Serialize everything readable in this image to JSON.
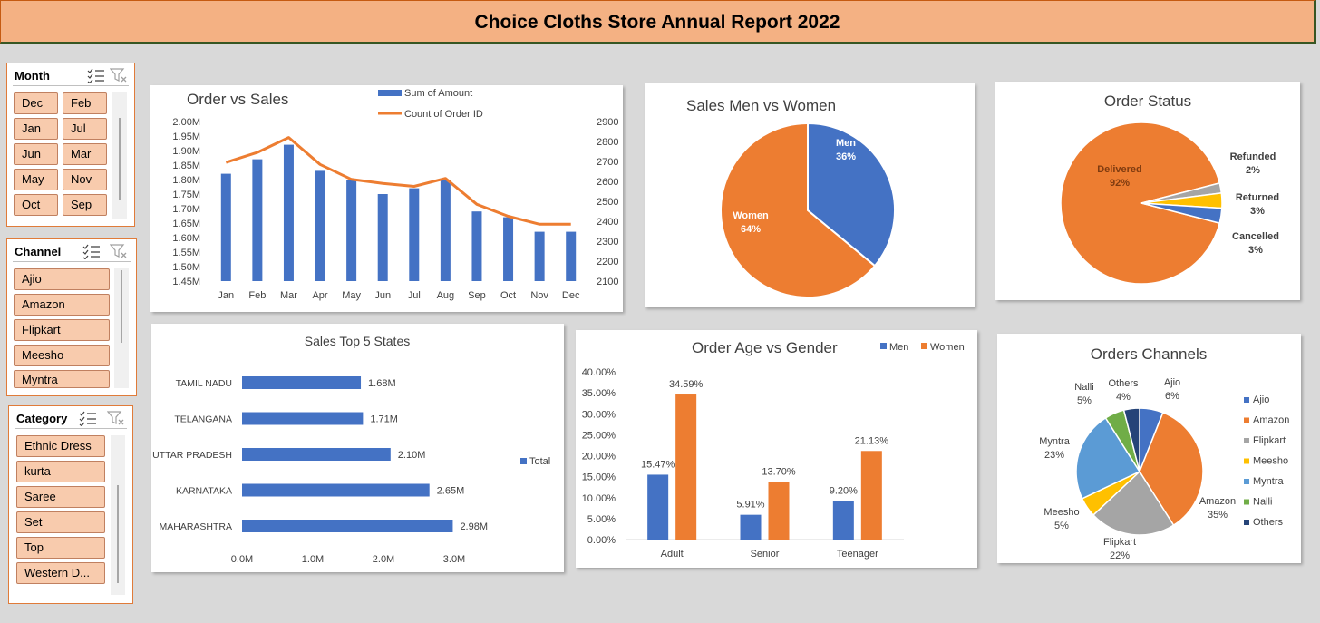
{
  "title": "Choice Cloths Store Annual Report 2022",
  "colors": {
    "blue": "#4472c4",
    "orange": "#ed7d31",
    "gray": "#a5a5a5",
    "yellow": "#ffc000",
    "lightblue": "#5b9bd5",
    "green": "#70ad47",
    "navy": "#264478"
  },
  "slicers": {
    "month": {
      "header": "Month",
      "items": [
        "Dec",
        "Feb",
        "Jan",
        "Jul",
        "Jun",
        "Mar",
        "May",
        "Nov",
        "Oct",
        "Sep"
      ]
    },
    "channel": {
      "header": "Channel",
      "items": [
        "Ajio",
        "Amazon",
        "Flipkart",
        "Meesho",
        "Myntra"
      ]
    },
    "category": {
      "header": "Category",
      "items": [
        "Ethnic Dress",
        "kurta",
        "Saree",
        "Set",
        "Top",
        "Western D..."
      ]
    }
  },
  "chart_data": [
    {
      "id": "order_vs_sales",
      "type": "bar+line",
      "title": "Order vs Sales",
      "categories": [
        "Jan",
        "Feb",
        "Mar",
        "Apr",
        "May",
        "Jun",
        "Jul",
        "Aug",
        "Sep",
        "Oct",
        "Nov",
        "Dec"
      ],
      "series": [
        {
          "name": "Sum of Amount",
          "type": "bar",
          "axis": "left",
          "values": [
            1.82,
            1.87,
            1.92,
            1.83,
            1.8,
            1.75,
            1.77,
            1.8,
            1.69,
            1.67,
            1.62,
            1.62
          ]
        },
        {
          "name": "Count of Order ID",
          "type": "line",
          "axis": "right",
          "values": [
            2695,
            2745,
            2820,
            2685,
            2610,
            2590,
            2575,
            2615,
            2485,
            2425,
            2385,
            2385
          ]
        }
      ],
      "y_left_ticks": [
        "2.00M",
        "1.95M",
        "1.90M",
        "1.85M",
        "1.80M",
        "1.75M",
        "1.70M",
        "1.65M",
        "1.60M",
        "1.55M",
        "1.50M",
        "1.45M"
      ],
      "y_left_range": [
        1.45,
        2.0
      ],
      "y_right_ticks": [
        "2900",
        "2800",
        "2700",
        "2600",
        "2500",
        "2400",
        "2300",
        "2200",
        "2100"
      ],
      "y_right_range": [
        2100,
        2900
      ],
      "legend": "top",
      "grid": false
    },
    {
      "id": "sales_gender",
      "type": "pie",
      "title": "Sales Men vs Women",
      "slices": [
        {
          "name": "Men",
          "value": 36,
          "label": "36%"
        },
        {
          "name": "Women",
          "value": 64,
          "label": "64%"
        }
      ]
    },
    {
      "id": "order_status",
      "type": "pie",
      "title": "Order Status",
      "slices": [
        {
          "name": "Delivered",
          "value": 92,
          "label": "92%"
        },
        {
          "name": "Refunded",
          "value": 2,
          "label": "2%"
        },
        {
          "name": "Returned",
          "value": 3,
          "label": "3%"
        },
        {
          "name": "Cancelled",
          "value": 3,
          "label": "3%"
        }
      ]
    },
    {
      "id": "top_states",
      "type": "bar",
      "orientation": "horizontal",
      "title": "Sales Top 5 States",
      "categories": [
        "TAMIL NADU",
        "TELANGANA",
        "UTTAR PRADESH",
        "KARNATAKA",
        "MAHARASHTRA"
      ],
      "values": [
        1.68,
        1.71,
        2.1,
        2.65,
        2.98
      ],
      "value_labels": [
        "1.68M",
        "1.71M",
        "2.10M",
        "2.65M",
        "2.98M"
      ],
      "x_ticks": [
        "0.0M",
        "1.0M",
        "2.0M",
        "3.0M"
      ],
      "x_range": [
        0,
        3.0
      ],
      "series_name": "Total",
      "legend": "right"
    },
    {
      "id": "age_gender",
      "type": "bar",
      "title": "Order Age vs Gender",
      "categories": [
        "Adult",
        "Senior",
        "Teenager"
      ],
      "series": [
        {
          "name": "Men",
          "values": [
            15.47,
            5.91,
            9.2
          ],
          "labels": [
            "15.47%",
            "5.91%",
            "9.20%"
          ]
        },
        {
          "name": "Women",
          "values": [
            34.59,
            13.7,
            21.13
          ],
          "labels": [
            "34.59%",
            "13.70%",
            "21.13%"
          ]
        }
      ],
      "y_ticks": [
        "40.00%",
        "35.00%",
        "30.00%",
        "25.00%",
        "20.00%",
        "15.00%",
        "10.00%",
        "5.00%",
        "0.00%"
      ],
      "y_range": [
        0,
        40
      ],
      "legend": "top-right"
    },
    {
      "id": "order_channels",
      "type": "pie",
      "title": "Orders Channels",
      "slices": [
        {
          "name": "Ajio",
          "value": 6,
          "label": "6%"
        },
        {
          "name": "Amazon",
          "value": 35,
          "label": "35%"
        },
        {
          "name": "Flipkart",
          "value": 22,
          "label": "22%"
        },
        {
          "name": "Meesho",
          "value": 5,
          "label": "5%"
        },
        {
          "name": "Myntra",
          "value": 23,
          "label": "23%"
        },
        {
          "name": "Nalli",
          "value": 5,
          "label": "5%"
        },
        {
          "name": "Others",
          "value": 4,
          "label": "4%"
        }
      ],
      "legend": "right"
    }
  ]
}
